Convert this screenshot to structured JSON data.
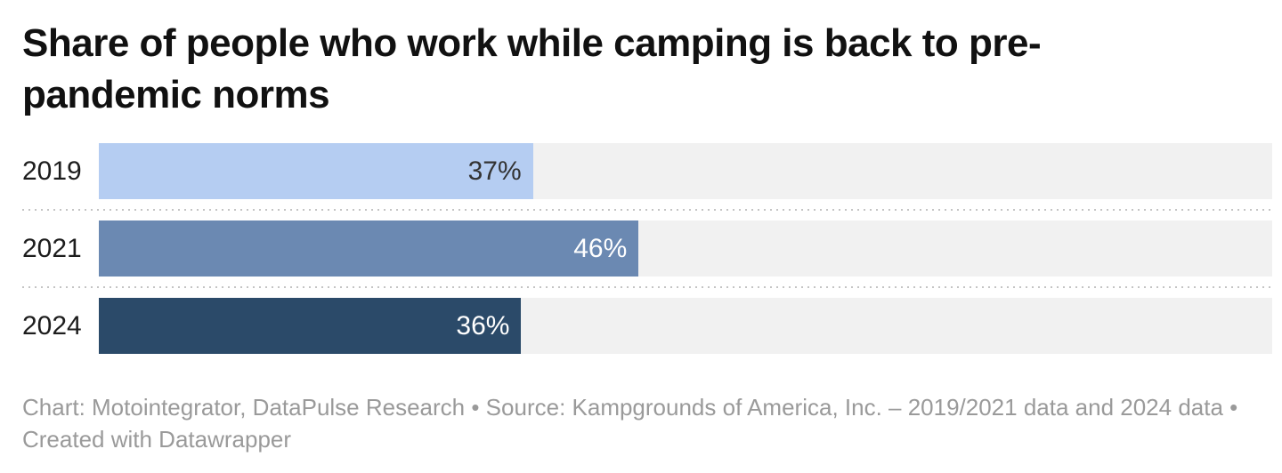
{
  "header": {
    "title": "Share of people who work while camping is back to pre-pandemic norms"
  },
  "chart_data": {
    "type": "bar",
    "orientation": "horizontal",
    "title": "Share of people who work while camping is back to pre-pandemic norms",
    "categories": [
      "2019",
      "2021",
      "2024"
    ],
    "values": [
      37,
      46,
      36
    ],
    "value_labels": [
      "37%",
      "46%",
      "36%"
    ],
    "xlabel": "",
    "ylabel": "",
    "xlim": [
      0,
      100
    ],
    "grid": false,
    "legend": "none",
    "bar_colors": [
      "#b5cdf2",
      "#6b89b2",
      "#2b4a69"
    ],
    "value_label_colors": [
      "#333333",
      "#ffffff",
      "#ffffff"
    ],
    "track_color": "#f1f1f1"
  },
  "footer": {
    "text": "Chart: Motointegrator, DataPulse Research • Source: Kampgrounds of America, Inc. – 2019/2021 data and 2024 data • Created with Datawrapper"
  }
}
